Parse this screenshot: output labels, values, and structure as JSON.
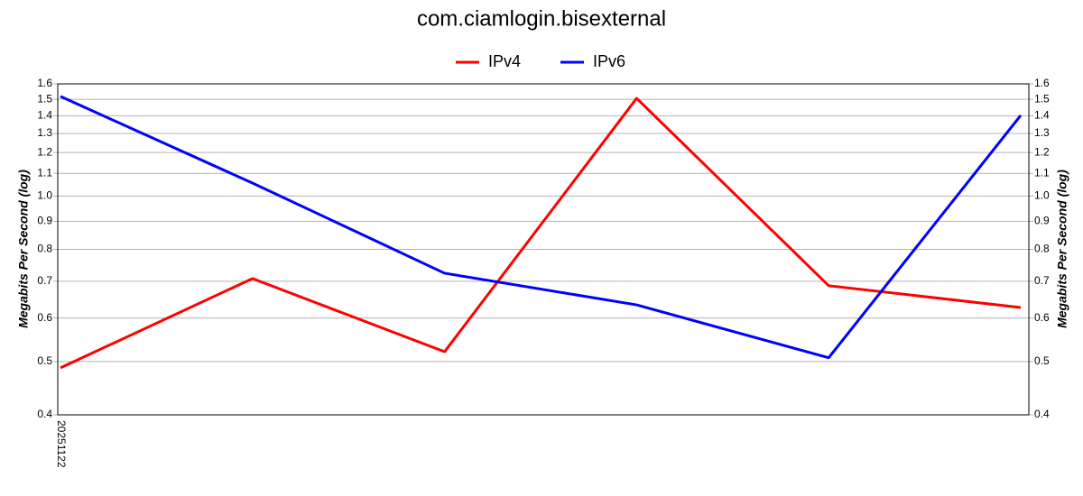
{
  "chart_data": {
    "type": "line",
    "title": "com.ciamlogin.bisexternal",
    "categories": [
      "20251122",
      null,
      null,
      null,
      null,
      null
    ],
    "series": [
      {
        "name": "IPv4",
        "color": "#ff0000",
        "values": [
          0.487,
          0.708,
          0.521,
          1.506,
          0.687,
          0.627
        ]
      },
      {
        "name": "IPv6",
        "color": "#0000ff",
        "values": [
          1.518,
          1.056,
          0.724,
          0.634,
          0.508,
          1.402
        ]
      }
    ],
    "ylabel": "Megabits Per Second (log)",
    "y2label": "Megabits Per Second (log)",
    "log_scale": true,
    "grid": true,
    "legend": "top",
    "ylim": [
      0.4,
      1.6
    ],
    "yticks": [
      0.4,
      0.5,
      0.6,
      0.7,
      0.8,
      0.9,
      {
        "value": 1,
        "label": "1.0"
      },
      1.1,
      1.2,
      1.3,
      1.4,
      1.5,
      1.6
    ],
    "y2lim": [
      0.4,
      1.6
    ],
    "y2ticks": [
      0.4,
      0.5,
      0.6,
      0.7,
      0.8,
      0.9,
      {
        "value": 1,
        "label": "1.0"
      },
      1.1,
      1.2,
      1.3,
      1.4,
      1.5,
      1.6
    ]
  }
}
